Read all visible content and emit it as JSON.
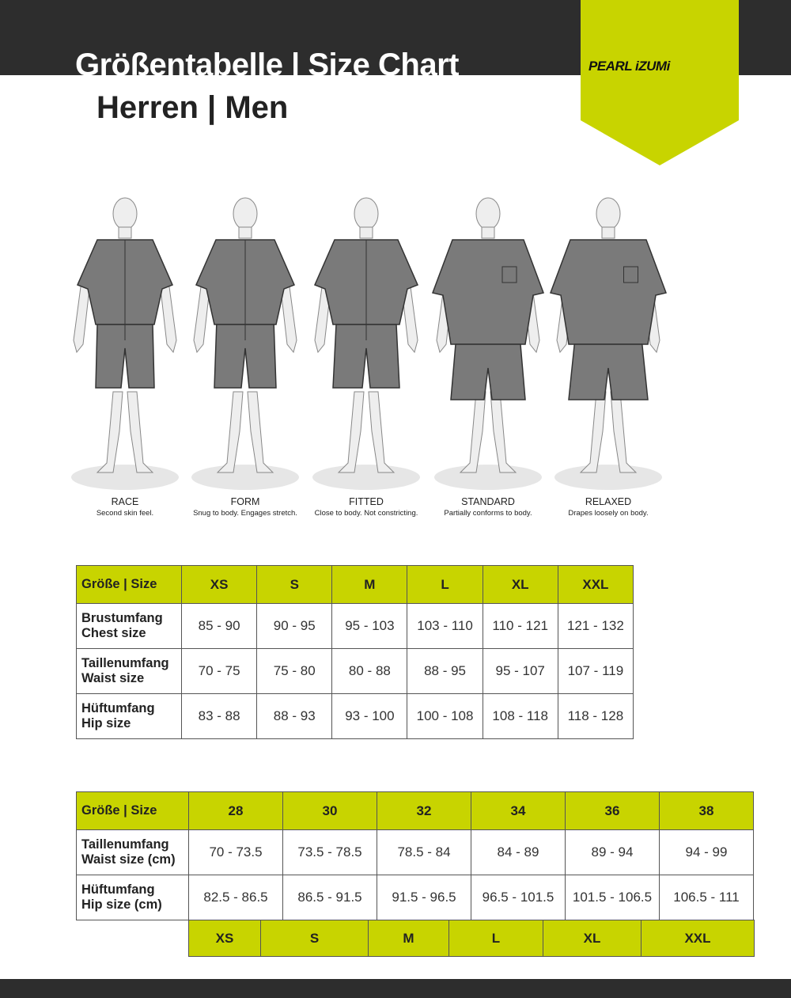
{
  "header": {
    "title": "Größentabelle | Size Chart",
    "subtitle": "Herren | Men",
    "brand": "PEARL iZUMi",
    "brand_color": "#c8d400",
    "band_color": "#2d2d2d"
  },
  "fits": [
    {
      "name": "RACE",
      "desc": "Second skin feel."
    },
    {
      "name": "FORM",
      "desc": "Snug to body. Engages stretch."
    },
    {
      "name": "FITTED",
      "desc": "Close to body. Not constricting."
    },
    {
      "name": "STANDARD",
      "desc": "Partially conforms to body."
    },
    {
      "name": "RELAXED",
      "desc": "Drapes loosely on body."
    }
  ],
  "table1": {
    "header": [
      "Größe | Size",
      "XS",
      "S",
      "M",
      "L",
      "XL",
      "XXL"
    ],
    "rows": [
      {
        "label1": "Brustumfang",
        "label2": "Chest size",
        "values": [
          "85 - 90",
          "90 - 95",
          "95 - 103",
          "103 - 110",
          "110 - 121",
          "121 - 132"
        ]
      },
      {
        "label1": "Taillenumfang",
        "label2": "Waist size",
        "values": [
          "70 - 75",
          "75 - 80",
          "80 - 88",
          "88 - 95",
          "95 - 107",
          "107 - 119"
        ]
      },
      {
        "label1": "Hüftumfang",
        "label2": "Hip size",
        "values": [
          "83 - 88",
          "88 - 93",
          "93 - 100",
          "100 - 108",
          "108 - 118",
          "118 - 128"
        ]
      }
    ]
  },
  "table2": {
    "header": [
      "Größe | Size",
      "28",
      "30",
      "32",
      "34",
      "36",
      "38"
    ],
    "rows": [
      {
        "label1": "Taillenumfang",
        "label2": "Waist size (cm)",
        "values": [
          "70 - 73.5",
          "73.5 - 78.5",
          "78.5 - 84",
          "84 - 89",
          "89 - 94",
          "94 - 99"
        ]
      },
      {
        "label1": "Hüftumfang",
        "label2": "Hip size (cm)",
        "values": [
          "82.5 - 86.5",
          "86.5 - 91.5",
          "91.5 - 96.5",
          "96.5 - 101.5",
          "101.5 - 106.5",
          "106.5 - 111"
        ]
      }
    ],
    "letter_sizes": [
      "XS",
      "S",
      "M",
      "L",
      "XL",
      "XXL"
    ]
  }
}
